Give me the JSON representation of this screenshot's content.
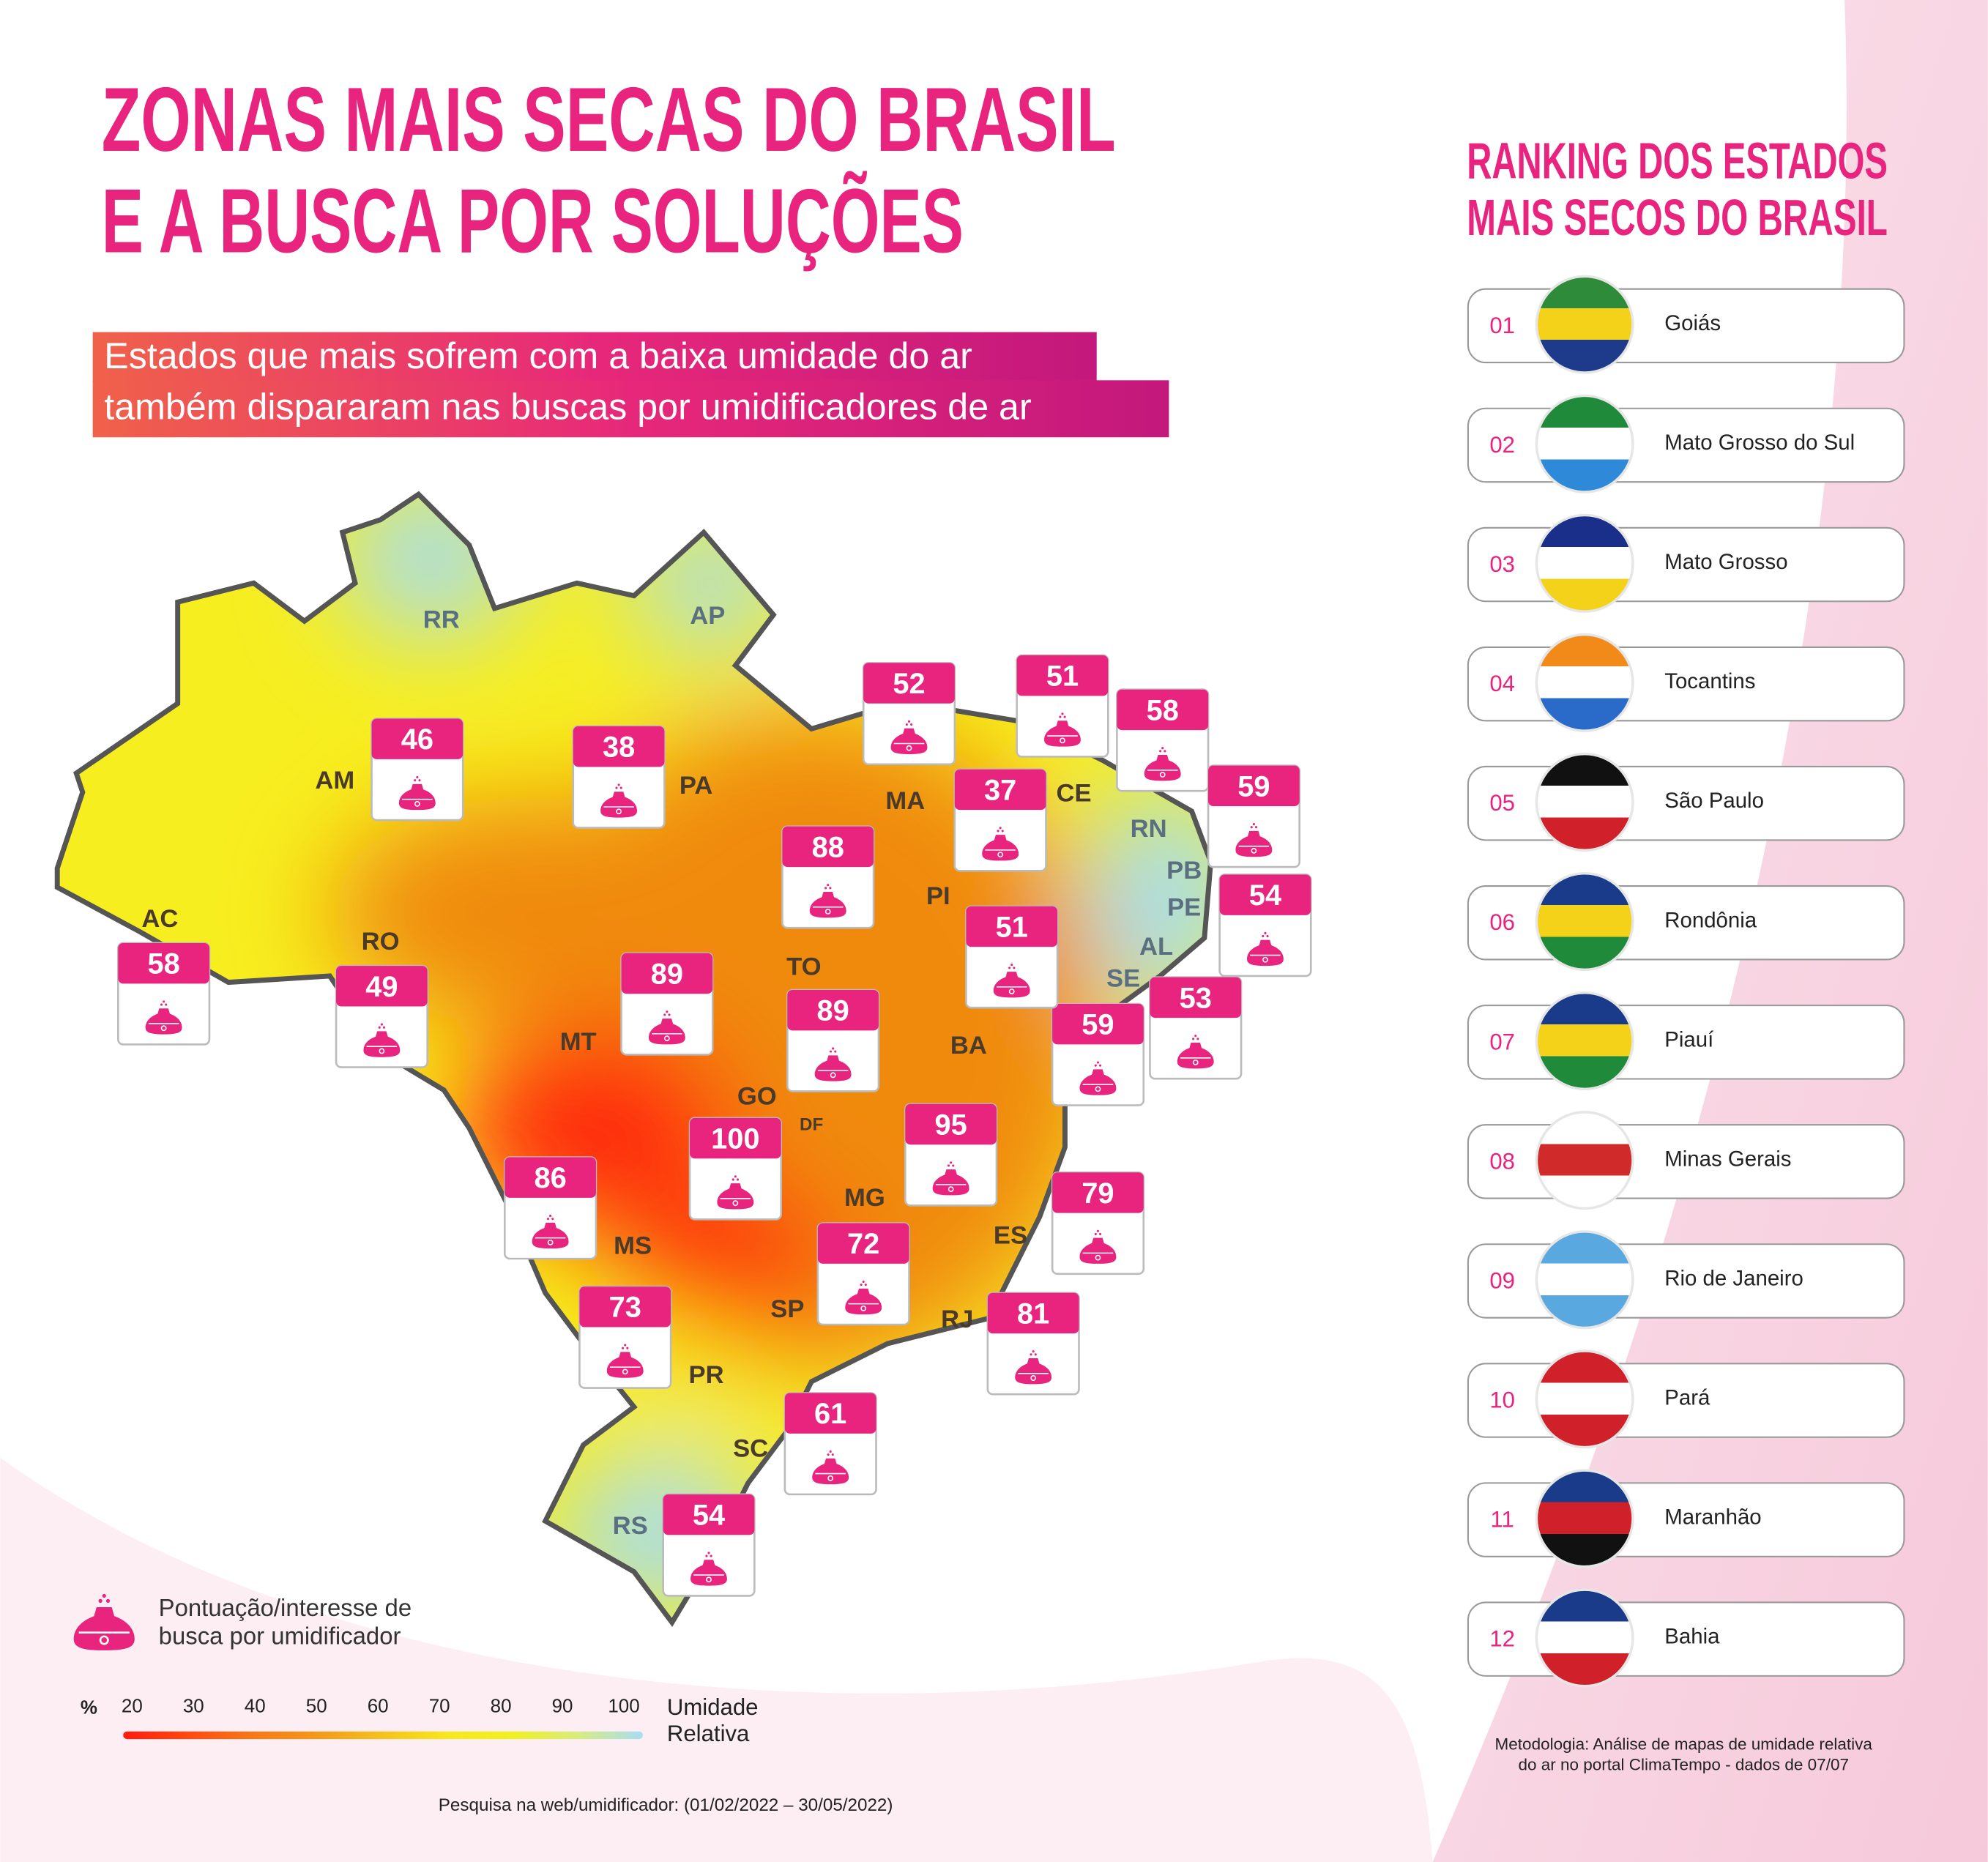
{
  "header": {
    "title": [
      "ZONAS MAIS SECAS DO BRASIL",
      "E A BUSCA POR SOLUÇÕES"
    ],
    "subtitle": [
      "Estados que mais sofrem com a baixa umidade do ar",
      "também dispararam nas buscas por umidificadores de ar"
    ]
  },
  "map": {
    "states": [
      {
        "abbr": "RR"
      },
      {
        "abbr": "AP"
      },
      {
        "abbr": "AM",
        "score": 46
      },
      {
        "abbr": "PA",
        "score": 38
      },
      {
        "abbr": "AC",
        "score": 58
      },
      {
        "abbr": "RO",
        "score": 49
      },
      {
        "abbr": "MT",
        "score": 89
      },
      {
        "abbr": "TO",
        "score": 88
      },
      {
        "abbr": "MA",
        "score": 52
      },
      {
        "abbr": "PI",
        "score": 37
      },
      {
        "abbr": "CE",
        "score": 51
      },
      {
        "abbr": "RN",
        "score": 58
      },
      {
        "abbr": "PB",
        "score": 59
      },
      {
        "abbr": "PE",
        "score": 54
      },
      {
        "abbr": "AL",
        "score": 53
      },
      {
        "abbr": "SE",
        "score": 59
      },
      {
        "abbr": "BA",
        "score": 51
      },
      {
        "abbr": "GO",
        "score": 100
      },
      {
        "abbr": "DF",
        "score": 89
      },
      {
        "abbr": "MG",
        "score": 95
      },
      {
        "abbr": "ES",
        "score": 79
      },
      {
        "abbr": "RJ",
        "score": 81
      },
      {
        "abbr": "SP",
        "score": 72
      },
      {
        "abbr": "MS",
        "score": 86
      },
      {
        "abbr": "PR",
        "score": 73
      },
      {
        "abbr": "SC",
        "score": 61
      },
      {
        "abbr": "RS",
        "score": 54
      }
    ]
  },
  "legend": {
    "icon_label": [
      "Pontuação/interesse de",
      "busca por umidificador"
    ],
    "unit": "%",
    "ticks": [
      20,
      30,
      40,
      50,
      60,
      70,
      80,
      90,
      100
    ],
    "scale_label": [
      "Umidade",
      "Relativa"
    ]
  },
  "source": "Pesquisa na web/umidificador: (01/02/2022 – 30/05/2022)",
  "ranking": {
    "title": [
      "RANKING DOS ESTADOS",
      "MAIS SECOS DO BRASIL"
    ],
    "items": [
      {
        "rank": "01",
        "name": "Goiás"
      },
      {
        "rank": "02",
        "name": "Mato Grosso do Sul"
      },
      {
        "rank": "03",
        "name": "Mato Grosso"
      },
      {
        "rank": "04",
        "name": "Tocantins"
      },
      {
        "rank": "05",
        "name": "São Paulo"
      },
      {
        "rank": "06",
        "name": "Rondônia"
      },
      {
        "rank": "07",
        "name": "Piauí"
      },
      {
        "rank": "08",
        "name": "Minas Gerais"
      },
      {
        "rank": "09",
        "name": "Rio de Janeiro"
      },
      {
        "rank": "10",
        "name": "Pará"
      },
      {
        "rank": "11",
        "name": "Maranhão"
      },
      {
        "rank": "12",
        "name": "Bahia"
      }
    ],
    "methodology": [
      "Metodologia: Análise de mapas de umidade relativa",
      "do ar no portal ClimaTempo - dados de 07/07"
    ]
  }
}
